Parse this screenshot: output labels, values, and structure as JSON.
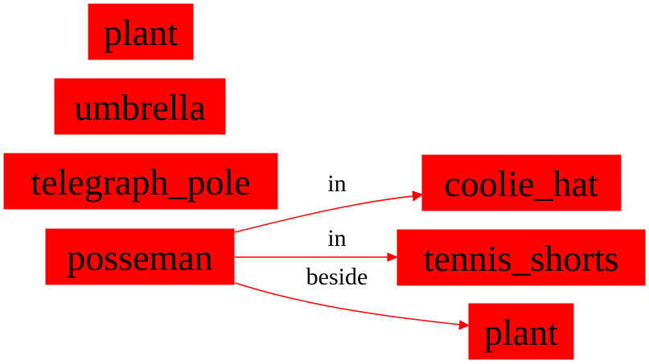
{
  "colors": {
    "node_fill": "#ff0000",
    "edge": "#ff0000",
    "text": "#000000",
    "background": "#ffffff"
  },
  "nodes": [
    {
      "id": "plant_top",
      "label": "plant"
    },
    {
      "id": "umbrella",
      "label": "umbrella"
    },
    {
      "id": "telegraph_pole",
      "label": "telegraph_pole"
    },
    {
      "id": "posseman",
      "label": "posseman"
    },
    {
      "id": "coolie_hat",
      "label": "coolie_hat"
    },
    {
      "id": "tennis_shorts",
      "label": "tennis_shorts"
    },
    {
      "id": "plant_bottom",
      "label": "plant"
    }
  ],
  "edges": [
    {
      "from": "posseman",
      "to": "coolie_hat",
      "label": "in"
    },
    {
      "from": "posseman",
      "to": "tennis_shorts",
      "label": "in"
    },
    {
      "from": "posseman",
      "to": "plant_bottom",
      "label": "beside"
    }
  ]
}
